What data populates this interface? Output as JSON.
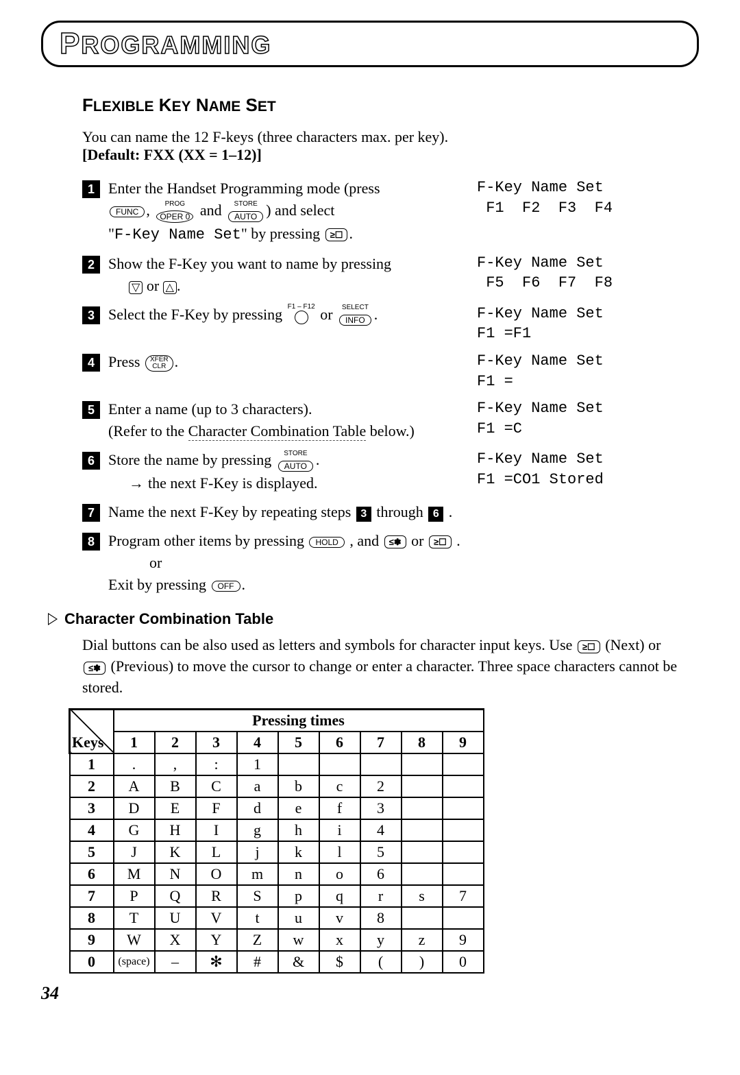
{
  "banner": "PROGRAMMING",
  "section_title": "FLEXIBLE KEY NAME SET",
  "intro_line1": "You can name the 12 F-keys (three characters max. per key).",
  "intro_line2": "[Default: FXX (XX = 1–12)]",
  "steps": {
    "s1": {
      "part_a": "Enter the Handset Programming mode (press",
      "part_b": ") and select",
      "part_c": "\"F-Key Name Set\" by pressing ",
      "btn_func": "FUNC",
      "btn_oper": "OPER 0",
      "btn_auto_top": "STORE",
      "btn_auto": "AUTO",
      "btn_prog": "PROG",
      "lcd": "F-Key Name Set\n F1  F2  F3  F4"
    },
    "s2": {
      "part_a": "Show the F-Key you want to name by pressing",
      "part_b": " or ",
      "lcd": "F-Key Name Set\n F5  F6  F7  F8"
    },
    "s3": {
      "part_a": "Select the F-Key by pressing ",
      "or": " or ",
      "btn_select_top": "SELECT",
      "btn_info": "INFO",
      "btn_f_top": "F1 – F12",
      "lcd": "F-Key Name Set\nF1 =F1"
    },
    "s4": {
      "part_a": "Press ",
      "btn_xfer_top": "XFER",
      "btn_clr": "CLR",
      "lcd": "F-Key Name Set\nF1 ="
    },
    "s5": {
      "part_a": "Enter a name (up to 3 characters).",
      "part_b": "(Refer to the Character Combination Table below.)",
      "lcd": "F-Key Name Set\nF1 =C"
    },
    "s6": {
      "part_a": "Store the name by pressing ",
      "part_b": "the next F-Key is displayed.",
      "btn_auto_top": "STORE",
      "btn_auto": "AUTO",
      "lcd": "F-Key Name Set\nF1 =CO1 Stored"
    },
    "s7": {
      "part_a": "Name the next F-Key by repeating steps ",
      "through": " through ",
      "period": "."
    },
    "s8": {
      "part_a": "Program other items by pressing ",
      "and": ", and ",
      "or": " or ",
      "dot_a": ".",
      "or_text": "or",
      "exit": "Exit by pressing ",
      "btn_hold": "HOLD",
      "btn_off": "OFF"
    }
  },
  "char_section": {
    "heading": "Character Combination Table",
    "intro_a": "Dial buttons can be also used as letters and symbols for character input keys. Use ",
    "intro_b": " (Next) or ",
    "intro_c": " (Previous) to move the cursor to change or enter a character. Three space characters cannot be stored."
  },
  "table": {
    "header_span": "Pressing times",
    "keys_label": "Keys",
    "cols": [
      "1",
      "2",
      "3",
      "4",
      "5",
      "6",
      "7",
      "8",
      "9"
    ],
    "rows": [
      {
        "k": "1",
        "c": [
          ".",
          ",",
          ":",
          "1",
          "",
          "",
          "",
          "",
          ""
        ]
      },
      {
        "k": "2",
        "c": [
          "A",
          "B",
          "C",
          "a",
          "b",
          "c",
          "2",
          "",
          ""
        ]
      },
      {
        "k": "3",
        "c": [
          "D",
          "E",
          "F",
          "d",
          "e",
          "f",
          "3",
          "",
          ""
        ]
      },
      {
        "k": "4",
        "c": [
          "G",
          "H",
          "I",
          "g",
          "h",
          "i",
          "4",
          "",
          ""
        ]
      },
      {
        "k": "5",
        "c": [
          "J",
          "K",
          "L",
          "j",
          "k",
          "l",
          "5",
          "",
          ""
        ]
      },
      {
        "k": "6",
        "c": [
          "M",
          "N",
          "O",
          "m",
          "n",
          "o",
          "6",
          "",
          ""
        ]
      },
      {
        "k": "7",
        "c": [
          "P",
          "Q",
          "R",
          "S",
          "p",
          "q",
          "r",
          "s",
          "7"
        ]
      },
      {
        "k": "8",
        "c": [
          "T",
          "U",
          "V",
          "t",
          "u",
          "v",
          "8",
          "",
          ""
        ]
      },
      {
        "k": "9",
        "c": [
          "W",
          "X",
          "Y",
          "Z",
          "w",
          "x",
          "y",
          "z",
          "9"
        ]
      },
      {
        "k": "0",
        "c": [
          "(space)",
          "–",
          "✻",
          "#",
          "&",
          "$",
          "(",
          ")",
          "0"
        ]
      }
    ]
  },
  "page_num": "34",
  "nav_btn_next": "≥☐",
  "nav_btn_prev": "≤✽"
}
